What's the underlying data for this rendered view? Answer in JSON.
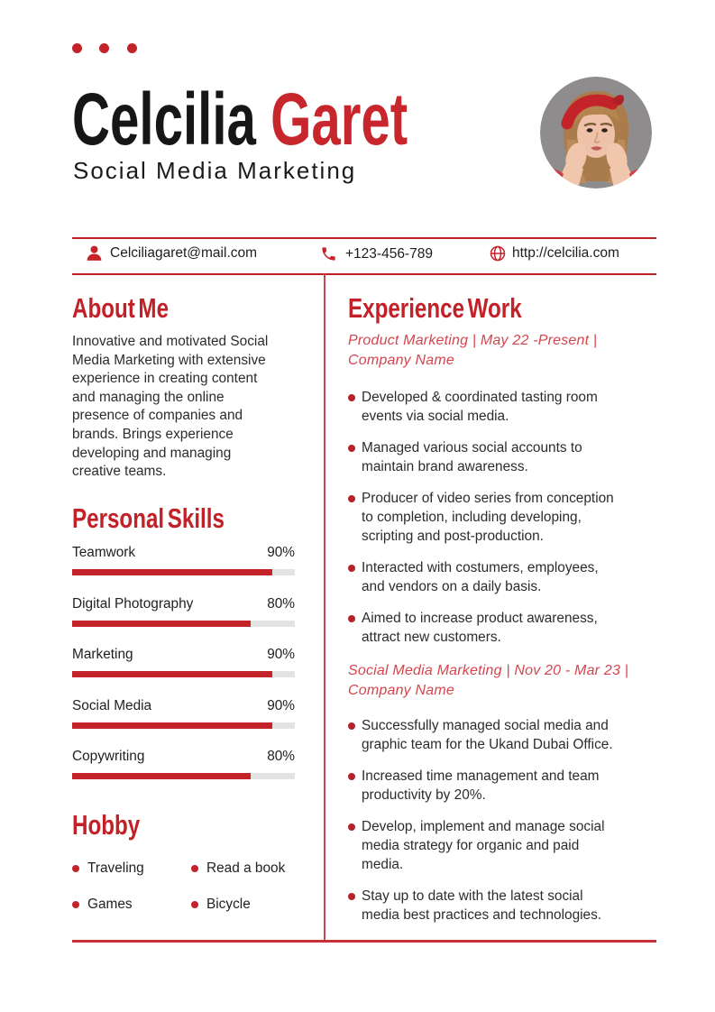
{
  "header": {
    "first_name": "Celcilia",
    "last_name": "Garet",
    "subtitle": "Social Media Marketing",
    "photo_alt": "circular portrait of woman with red headband, hands on cheeks"
  },
  "contact": {
    "email": "Celciliagaret@mail.com",
    "phone": "+123-456-789",
    "website": "http://celcilia.com"
  },
  "about": {
    "heading": "About Me",
    "lines": [
      "Innovative and motivated Social",
      "Media Marketing with extensive",
      "experience in creating content",
      "and managing the online",
      "presence of companies and",
      "brands. Brings experience",
      "developing and managing",
      "creative teams."
    ]
  },
  "skills": {
    "heading": "Personal Skills",
    "items": [
      {
        "label": "Teamwork",
        "percent": 90
      },
      {
        "label": "Digital Photography",
        "percent": 80
      },
      {
        "label": "Marketing",
        "percent": 90
      },
      {
        "label": "Social Media",
        "percent": 90
      },
      {
        "label": "Copywriting",
        "percent": 80
      }
    ]
  },
  "hobby": {
    "heading": "Hobby",
    "items": [
      "Traveling",
      "Read a book",
      "Games",
      "Bicycle"
    ]
  },
  "experience": {
    "heading": "Experience Work",
    "jobs": [
      {
        "title_lines": [
          "Product Marketing | May 22 -Present |",
          "Company Name"
        ],
        "bullets": [
          [
            "Developed & coordinated tasting room",
            "events via social media."
          ],
          [
            "Managed various social accounts to",
            "maintain brand awareness."
          ],
          [
            "Producer of video series from conception",
            "to completion, including developing,",
            "scripting and post-production."
          ],
          [
            "Interacted with costumers, employees,",
            "and vendors on a daily basis."
          ],
          [
            "Aimed to increase product awareness,",
            "attract new customers."
          ]
        ]
      },
      {
        "title_lines": [
          "Social Media Marketing | Nov 20 - Mar 23 |",
          "Company Name"
        ],
        "bullets": [
          [
            "Successfully managed social media and",
            "graphic team for the Ukand Dubai Office."
          ],
          [
            "Increased time management and team",
            "productivity by 20%."
          ],
          [
            "Develop, implement and manage social",
            "media strategy for organic and paid",
            "media."
          ],
          [
            "Stay up to date with the latest social",
            "media best practices and technologies."
          ]
        ]
      }
    ]
  },
  "colors": {
    "accent": "#c4232a",
    "name_red": "#c8262d",
    "job_title_red": "#d4454e",
    "text": "#2d2c2c",
    "bar_track": "#e3e3e3",
    "photo_background": "#8e8c8d"
  }
}
